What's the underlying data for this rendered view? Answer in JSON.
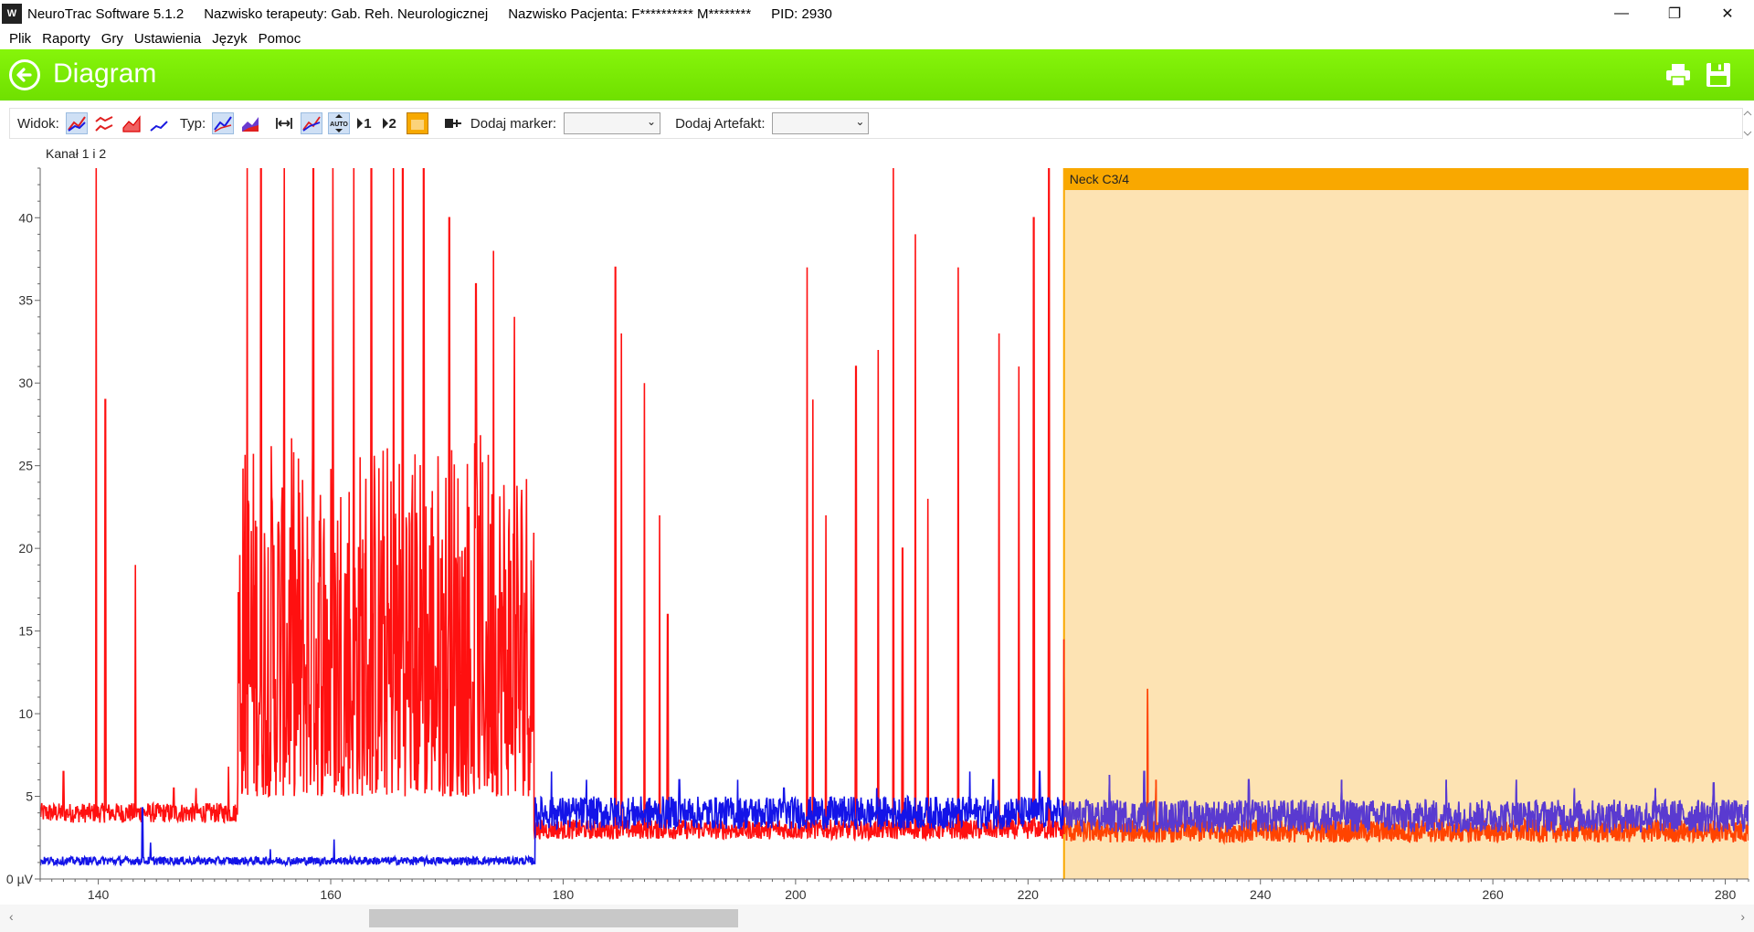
{
  "window": {
    "app_title": "NeuroTrac Software 5.1.2",
    "therapist": "Nazwisko terapeuty: Gab. Reh. Neurologicznej",
    "patient": "Nazwisko Pacjenta: F********** M********",
    "pid": "PID: 2930",
    "app_icon_text": "W"
  },
  "menu": [
    "Plik",
    "Raporty",
    "Gry",
    "Ustawienia",
    "Język",
    "Pomoc"
  ],
  "header": {
    "title": "Diagram"
  },
  "toolbar": {
    "view_label": "Widok:",
    "type_label": "Typ:",
    "ch1_label": "1",
    "ch2_label": "2",
    "marker_label": "Dodaj marker:",
    "marker_value": "",
    "artifact_label": "Dodaj Artefakt:",
    "artifact_value": ""
  },
  "chart_title": "Kanał 1 i 2",
  "chart_data": {
    "type": "line",
    "xlim": [
      135,
      282
    ],
    "ylim": [
      0,
      43
    ],
    "x_ticks": [
      140,
      160,
      180,
      200,
      220,
      240,
      260,
      280
    ],
    "y_ticks": [
      0,
      5,
      10,
      15,
      20,
      25,
      30,
      35,
      40
    ],
    "y_tick_labels": [
      "0 µV",
      "5",
      "10",
      "15",
      "20",
      "25",
      "30",
      "35",
      "40"
    ],
    "grid": false,
    "series": [
      {
        "color": "#ff1010",
        "segments": [
          {
            "from": 135,
            "to": 152,
            "base": 4.0,
            "noise": 0.6,
            "spikes": [
              [
                137,
                6.5
              ],
              [
                139.8,
                43
              ],
              [
                140.6,
                29
              ],
              [
                143.2,
                19
              ],
              [
                146.5,
                5.5
              ],
              [
                148.4,
                5.5
              ],
              [
                151.2,
                6.8
              ]
            ]
          },
          {
            "from": 152,
            "to": 177.5,
            "base": 5,
            "noise": 10,
            "spikes": [
              [
                152.8,
                43
              ],
              [
                154,
                43
              ],
              [
                156,
                43
              ],
              [
                158.5,
                43
              ],
              [
                160.2,
                43
              ],
              [
                162,
                43
              ],
              [
                163.5,
                43
              ],
              [
                165.4,
                43
              ],
              [
                166.2,
                43
              ],
              [
                168,
                43
              ],
              [
                170.2,
                40
              ],
              [
                172.5,
                36
              ],
              [
                174,
                38
              ],
              [
                175.8,
                34
              ],
              [
                176.8,
                15
              ]
            ]
          },
          {
            "from": 177.5,
            "to": 223,
            "base": 3.0,
            "noise": 0.6,
            "spikes": [
              [
                184.5,
                37
              ],
              [
                185,
                33
              ],
              [
                187,
                30
              ],
              [
                188.3,
                22
              ],
              [
                189,
                16
              ],
              [
                201,
                37
              ],
              [
                201.5,
                29
              ],
              [
                202.6,
                22
              ],
              [
                205.2,
                31
              ],
              [
                207.1,
                32
              ],
              [
                208.4,
                43
              ],
              [
                209.2,
                20
              ],
              [
                210.3,
                39
              ],
              [
                211.4,
                23
              ],
              [
                214,
                37
              ],
              [
                217.5,
                33
              ],
              [
                219.2,
                31
              ],
              [
                220.5,
                40
              ],
              [
                221.8,
                43
              ]
            ]
          },
          {
            "from": 223,
            "to": 282,
            "base": 2.9,
            "noise": 0.7,
            "spikes": [
              [
                223.1,
                14.5
              ],
              [
                230.3,
                11.5
              ],
              [
                231,
                6
              ]
            ]
          }
        ]
      },
      {
        "color": "#1414e8",
        "segments": [
          {
            "from": 135,
            "to": 177.6,
            "base": 1.1,
            "noise": 0.25,
            "spikes": [
              [
                143.8,
                4.3
              ],
              [
                144.5,
                2.2
              ],
              [
                154.8,
                1.8
              ],
              [
                160.3,
                2.4
              ]
            ]
          },
          {
            "from": 177.6,
            "to": 223,
            "base": 4.0,
            "noise": 1.0,
            "spikes": [
              [
                179,
                6.5
              ],
              [
                182,
                6
              ],
              [
                190,
                6
              ],
              [
                195,
                6
              ],
              [
                199,
                5.5
              ],
              [
                207,
                5.5
              ],
              [
                215,
                6.5
              ],
              [
                217,
                6
              ],
              [
                221,
                6.5
              ]
            ]
          },
          {
            "from": 223,
            "to": 282,
            "base": 3.8,
            "noise": 1.0,
            "spikes": [
              [
                227,
                6.3
              ],
              [
                230,
                6.5
              ],
              [
                239,
                6
              ],
              [
                247,
                6
              ],
              [
                256,
                6
              ],
              [
                262,
                6
              ],
              [
                267,
                5.5
              ],
              [
                274,
                5.5
              ],
              [
                279,
                5.8
              ]
            ]
          }
        ]
      }
    ],
    "artifact": {
      "from": 223.1,
      "to": 282,
      "label": "Neck C3/4",
      "fill": "#fde3b3",
      "border": "#f9a800",
      "overlay_color": "#ff4400"
    }
  },
  "colors": {
    "accent": "#79ee00",
    "ch1": "#ff1010",
    "ch2": "#1414e8"
  }
}
